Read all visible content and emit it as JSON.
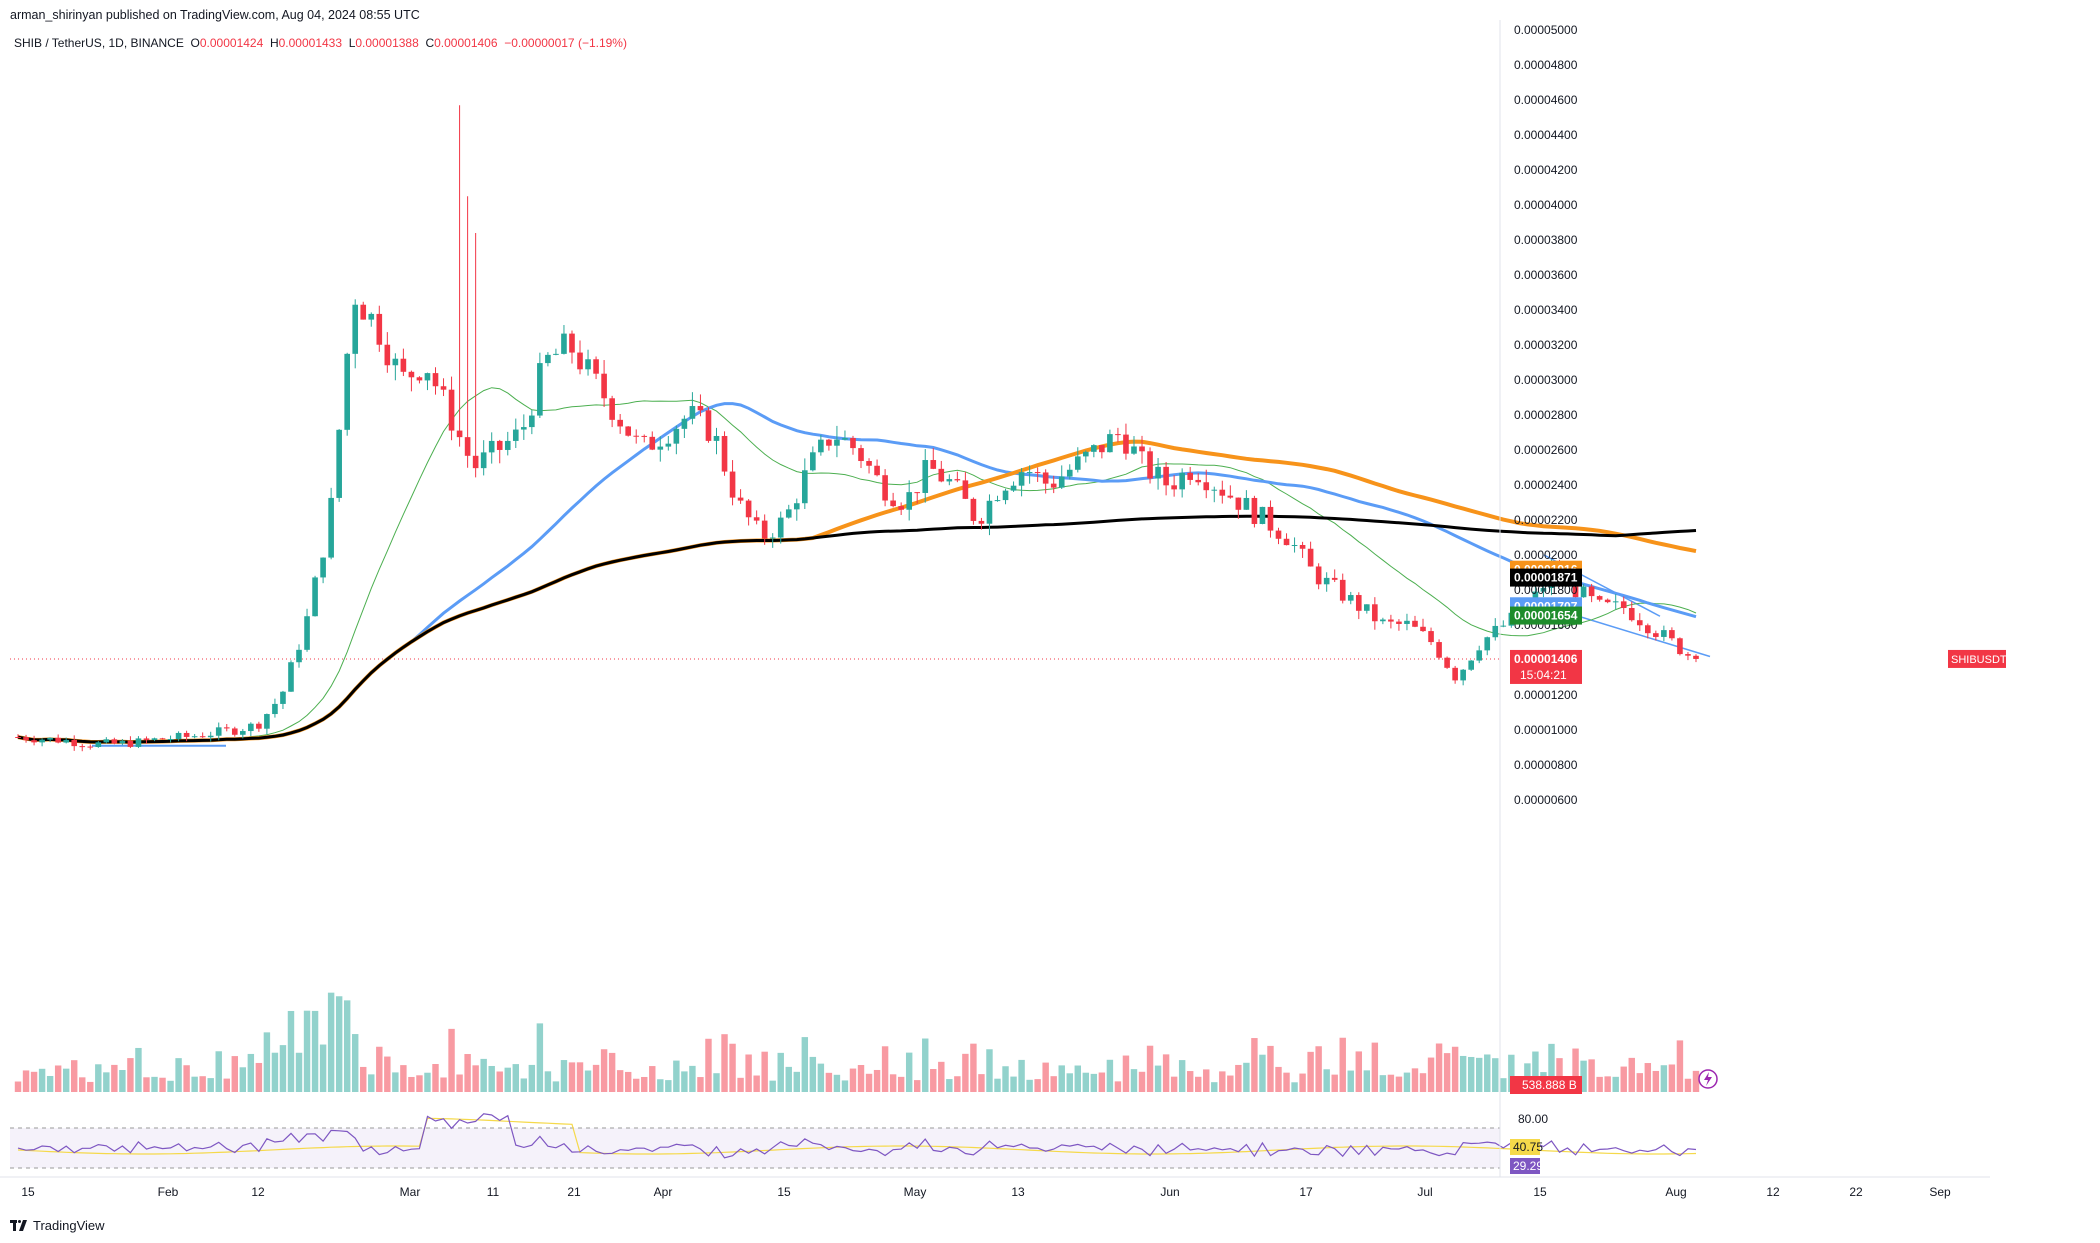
{
  "publisher": "arman_shirinyan published on TradingView.com, Aug 04, 2024 08:55 UTC",
  "symbol_line": {
    "name": "SHIB / TetherUS, 1D, BINANCE",
    "open_label": "O",
    "open": "0.00001424",
    "high_label": "H",
    "high": "0.00001433",
    "low_label": "L",
    "low": "0.00001388",
    "close_label": "C",
    "close": "0.00001406",
    "change": "−0.00000017 (−1.19%)"
  },
  "footer_brand": "TradingView",
  "colors": {
    "up": "#26a69a",
    "down": "#f23645",
    "ma_blue": "#5b9cf6",
    "ma_orange": "#f7931a",
    "ma_black": "#000000",
    "ma_green": "#4caf50",
    "rsi": "#7e57c2",
    "rsi_ma": "#f5d94a",
    "price_line": "#f23645"
  },
  "price_badges": [
    {
      "value": "0.00001916",
      "color": "#f7931a"
    },
    {
      "value": "0.00001871",
      "color": "#000000"
    },
    {
      "value": "0.00001707",
      "color": "#5b9cf6"
    },
    {
      "value": "0.00001654",
      "color": "#1e8c2b"
    }
  ],
  "current_price": {
    "ticker": "SHIBUSDT",
    "value": "0.00001406",
    "countdown": "15:04:21"
  },
  "volume_badge": "538.888 B",
  "rsi": {
    "levels": [
      "80.00"
    ],
    "value": "40.75",
    "ma_value": "29.29"
  },
  "chart_data": {
    "type": "candlestick",
    "y_axis_labels": [
      "0.00005000",
      "0.00004800",
      "0.00004600",
      "0.00004400",
      "0.00004200",
      "0.00004000",
      "0.00003800",
      "0.00003600",
      "0.00003400",
      "0.00003200",
      "0.00003000",
      "0.00002800",
      "0.00002600",
      "0.00002400",
      "0.00002200",
      "0.00002000",
      "0.00001800",
      "0.00001600",
      "0.00001200",
      "0.00001000",
      "0.00000800",
      "0.00000600"
    ],
    "x_axis_labels": [
      "15",
      "Feb",
      "12",
      "Mar",
      "11",
      "21",
      "Apr",
      "15",
      "May",
      "13",
      "Jun",
      "17",
      "Jul",
      "15",
      "Aug",
      "12",
      "22",
      "Sep"
    ],
    "ylim": [
      5.8e-06,
      5.03e-05
    ],
    "close_series": [
      9.6e-06,
      9.5e-06,
      9.4e-06,
      9.2e-06,
      9.2e-06,
      9.3e-06,
      9.5e-06,
      9.6e-06,
      9.8e-06,
      1e-05,
      1.03e-05,
      1.2e-05,
      1.6e-05,
      2.2e-05,
      3.5e-05,
      3.3e-05,
      3e-05,
      3.1e-05,
      2.8e-05,
      2.5e-05,
      2.6e-05,
      2.7e-05,
      3.1e-05,
      3.2e-05,
      3e-05,
      2.8e-05,
      2.6e-05,
      2.7e-05,
      2.8e-05,
      2.7e-05,
      2.3e-05,
      2.1e-05,
      2.2e-05,
      2.5e-05,
      2.7e-05,
      2.6e-05,
      2.4e-05,
      2.3e-05,
      2.5e-05,
      2.4e-05,
      2.2e-05,
      2.4e-05,
      2.5e-05,
      2.4e-05,
      2.5e-05,
      2.6e-05,
      2.7e-05,
      2.5e-05,
      2.4e-05,
      2.5e-05,
      2.4e-05,
      2.3e-05,
      2.2e-05,
      2.1e-05,
      1.9e-05,
      1.8e-05,
      1.7e-05,
      1.6e-05,
      1.6e-05,
      1.5e-05,
      1.3e-05,
      1.5e-05,
      1.6e-05,
      1.7e-05,
      1.9e-05,
      1.8e-05,
      1.7e-05,
      1.7e-05,
      1.6e-05,
      1.5e-05,
      1.4e-05
    ]
  }
}
